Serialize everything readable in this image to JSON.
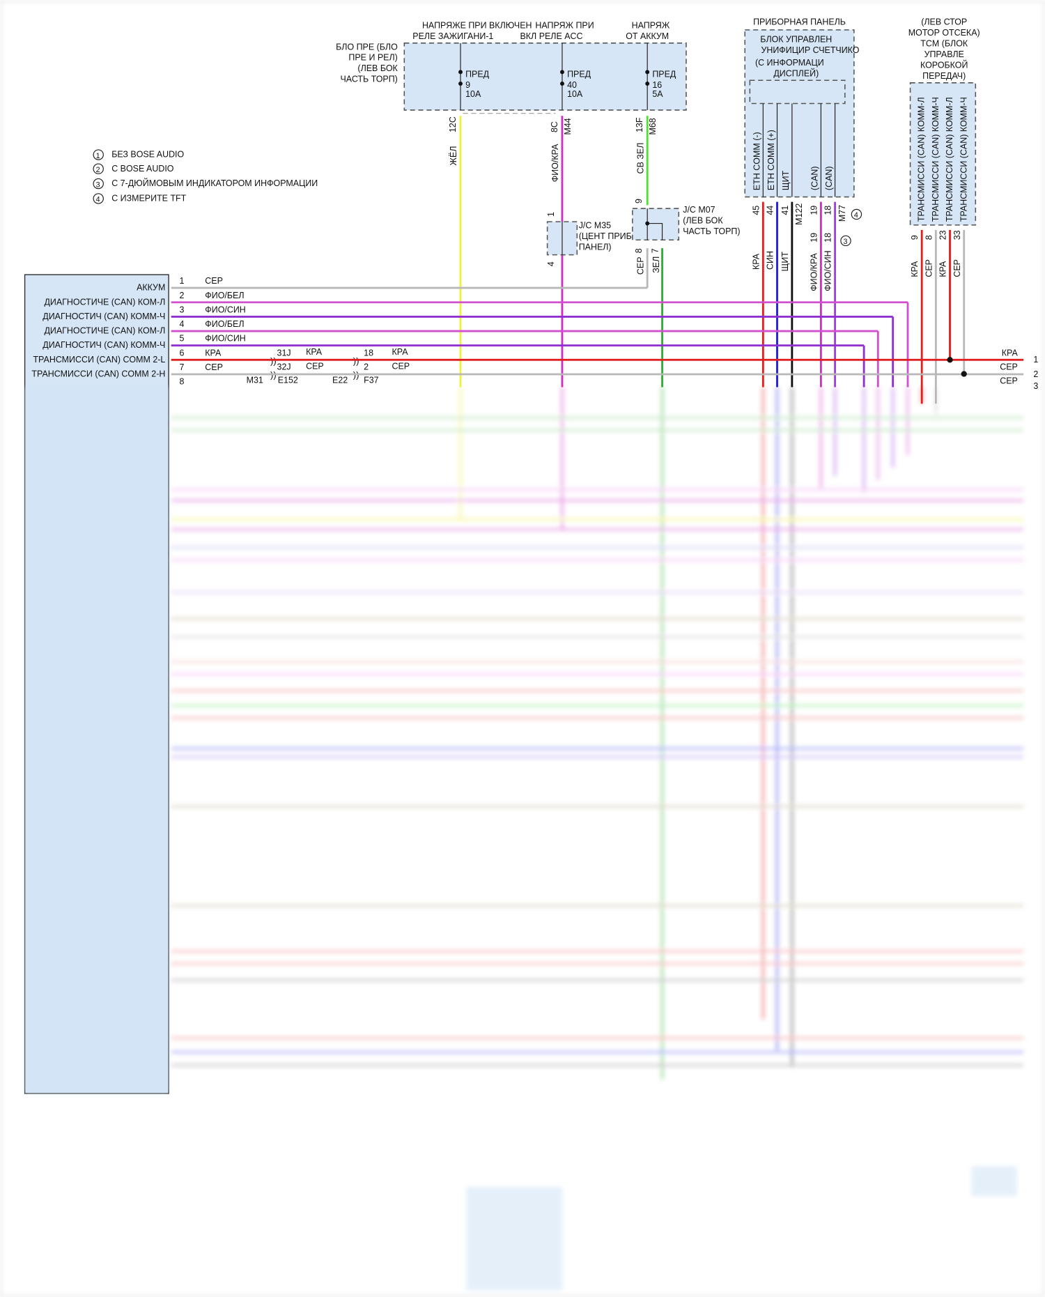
{
  "legend": [
    {
      "num": "1",
      "text": "БЕЗ BOSE AUDIO"
    },
    {
      "num": "2",
      "text": "С BOSE AUDIO"
    },
    {
      "num": "3",
      "text": "С 7-ДЮЙМОВЫМ ИНДИКАТОРОМ ИНФОРМАЦИИ"
    },
    {
      "num": "4",
      "text": "С ИЗМЕРИТЕ TFT"
    }
  ],
  "fuse_box": {
    "label": [
      "БЛО ПРЕ (БЛО",
      "ПРЕ И РЕЛ)",
      "(ЛЕВ БОК",
      "ЧАСТЬ ТОРП)"
    ],
    "headers": [
      [
        "НАПРЯЖЕ ПРИ ВКЛЮЧЕН",
        "РЕЛЕ ЗАЖИГАНИ-1"
      ],
      [
        "НАПРЯЖ ПРИ",
        "ВКЛ РЕЛЕ ACC"
      ],
      [
        "НАПРЯЖ",
        "ОТ АККУМ"
      ]
    ],
    "fuses": [
      {
        "name": "ПРЕД",
        "num": "9",
        "rating": "10A",
        "pin": "12C",
        "conn": "",
        "wire": "ЖЁЛ"
      },
      {
        "name": "ПРЕД",
        "num": "40",
        "rating": "10A",
        "pin": "8C",
        "conn": "M44",
        "wire": "ФИО/КРА"
      },
      {
        "name": "ПРЕД",
        "num": "16",
        "rating": "5A",
        "pin": "13F",
        "conn": "M68",
        "wire": "СВ ЗЕЛ"
      }
    ]
  },
  "jc_m35": {
    "label": [
      "J/C M35",
      "(ЦЕНТ ПРИБО",
      "ПАНЕЛ)"
    ],
    "pin_top": "1",
    "pin_bottom": "4"
  },
  "jc_m07": {
    "label": [
      "J/C M07",
      "(ЛЕВ БОК",
      "ЧАСТЬ ТОРП)"
    ],
    "pin_top": "9",
    "pins_bottom": [
      "8",
      "7"
    ],
    "wires": [
      "СЕР",
      "ЗЕЛ"
    ]
  },
  "cluster": {
    "title": "ПРИБОРНАЯ ПАНЕЛЬ",
    "label": [
      "БЛОК УПРАВЛЕН",
      "УНИФИЦИР СЧЕТЧИКО",
      "(С ИНФОРМАЦИ",
      "ДИСПЛЕЙ)"
    ],
    "pins": [
      {
        "name": "ETH COMM (-)",
        "pin": "45",
        "wire": "КРА",
        "color": "#e02020"
      },
      {
        "name": "ETH COMM (+)",
        "pin": "44",
        "wire": "СИН",
        "color": "#2020d0"
      },
      {
        "name": "ЩИТ",
        "pin": "41",
        "wire": "ЩИТ",
        "color": "#111111"
      },
      {
        "name": "(CAN)",
        "pin": "19",
        "wire": "ФИО/КРА",
        "color": "#d030c0"
      },
      {
        "name": "(CAN)",
        "pin": "18",
        "wire": "ФИО/СИН",
        "color": "#a040e0"
      }
    ],
    "conn_m122": "M122",
    "conn_m77": "M77",
    "note4": "4",
    "note3": "3",
    "alt_pins": [
      "19",
      "18"
    ]
  },
  "tcm": {
    "label": [
      "(ЛЕВ СТОР",
      "МОТОР ОТСЕКА)",
      "TCM (БЛОК",
      "УПРАВЛЕ",
      "КОРОБКОЙ",
      "ПЕРЕДАЧ)"
    ],
    "pins": [
      {
        "name": "ТРАНСМИССИ (CAN) КОММ-Л",
        "pin": "9",
        "wire": "КРА",
        "color": "#e02020"
      },
      {
        "name": "ТРАНСМИССИ (CAN) КОММ-Ч",
        "pin": "8",
        "wire": "СЕР",
        "color": "#b8b8b8"
      },
      {
        "name": "ТРАНСМИССИ (CAN) КОММ-Л",
        "pin": "23",
        "wire": "КРА",
        "color": "#e02020"
      },
      {
        "name": "ТРАНСМИССИ (CAN) КОММ-Ч",
        "pin": "33",
        "wire": "СЕР",
        "color": "#b8b8b8"
      }
    ]
  },
  "dlc": {
    "rows": [
      {
        "label": "АККУМ",
        "pin": "1",
        "wire": "СЕР",
        "color": "#b8b8b8"
      },
      {
        "label": "ДИАГНОСТИЧЕ (CAN) КОМ-Л",
        "pin": "2",
        "wire": "ФИО/БЕЛ",
        "color": "#d050d0"
      },
      {
        "label": "ДИАГНОСТИЧ (CAN) КОММ-Ч",
        "pin": "3",
        "wire": "ФИО/СИН",
        "color": "#9030d0"
      },
      {
        "label": "ДИАГНОСТИЧЕ (CAN) КОМ-Л",
        "pin": "4",
        "wire": "ФИО/БЕЛ",
        "color": "#d050d0"
      },
      {
        "label": "ДИАГНОСТИЧ (CAN) КОММ-Ч",
        "pin": "5",
        "wire": "ФИО/СИН",
        "color": "#9030d0"
      },
      {
        "label": "ТРАНСМИССИ (CAN) COMM 2-L",
        "pin": "6",
        "wire": "КРА",
        "color": "#e02020"
      },
      {
        "label": "ТРАНСМИССИ (CAN) COMM 2-H",
        "pin": "7",
        "wire": "СЕР",
        "color": "#b8b8b8"
      },
      {
        "label": "",
        "pin": "8",
        "wire": "",
        "color": ""
      }
    ],
    "splice1": {
      "pins": [
        "31J",
        "32J"
      ],
      "wires": [
        "КРА",
        "СЕР"
      ],
      "conns": [
        "M31",
        "E152"
      ]
    },
    "splice2": {
      "pins": [
        "18",
        "2"
      ],
      "wires": [
        "КРА",
        "СЕР"
      ],
      "conns": [
        "E22",
        "F37"
      ]
    },
    "right_pins": [
      {
        "wire": "КРА",
        "pin": "1"
      },
      {
        "wire": "СЕР",
        "pin": "2"
      },
      {
        "wire": "СЕР",
        "pin": "3"
      }
    ]
  }
}
